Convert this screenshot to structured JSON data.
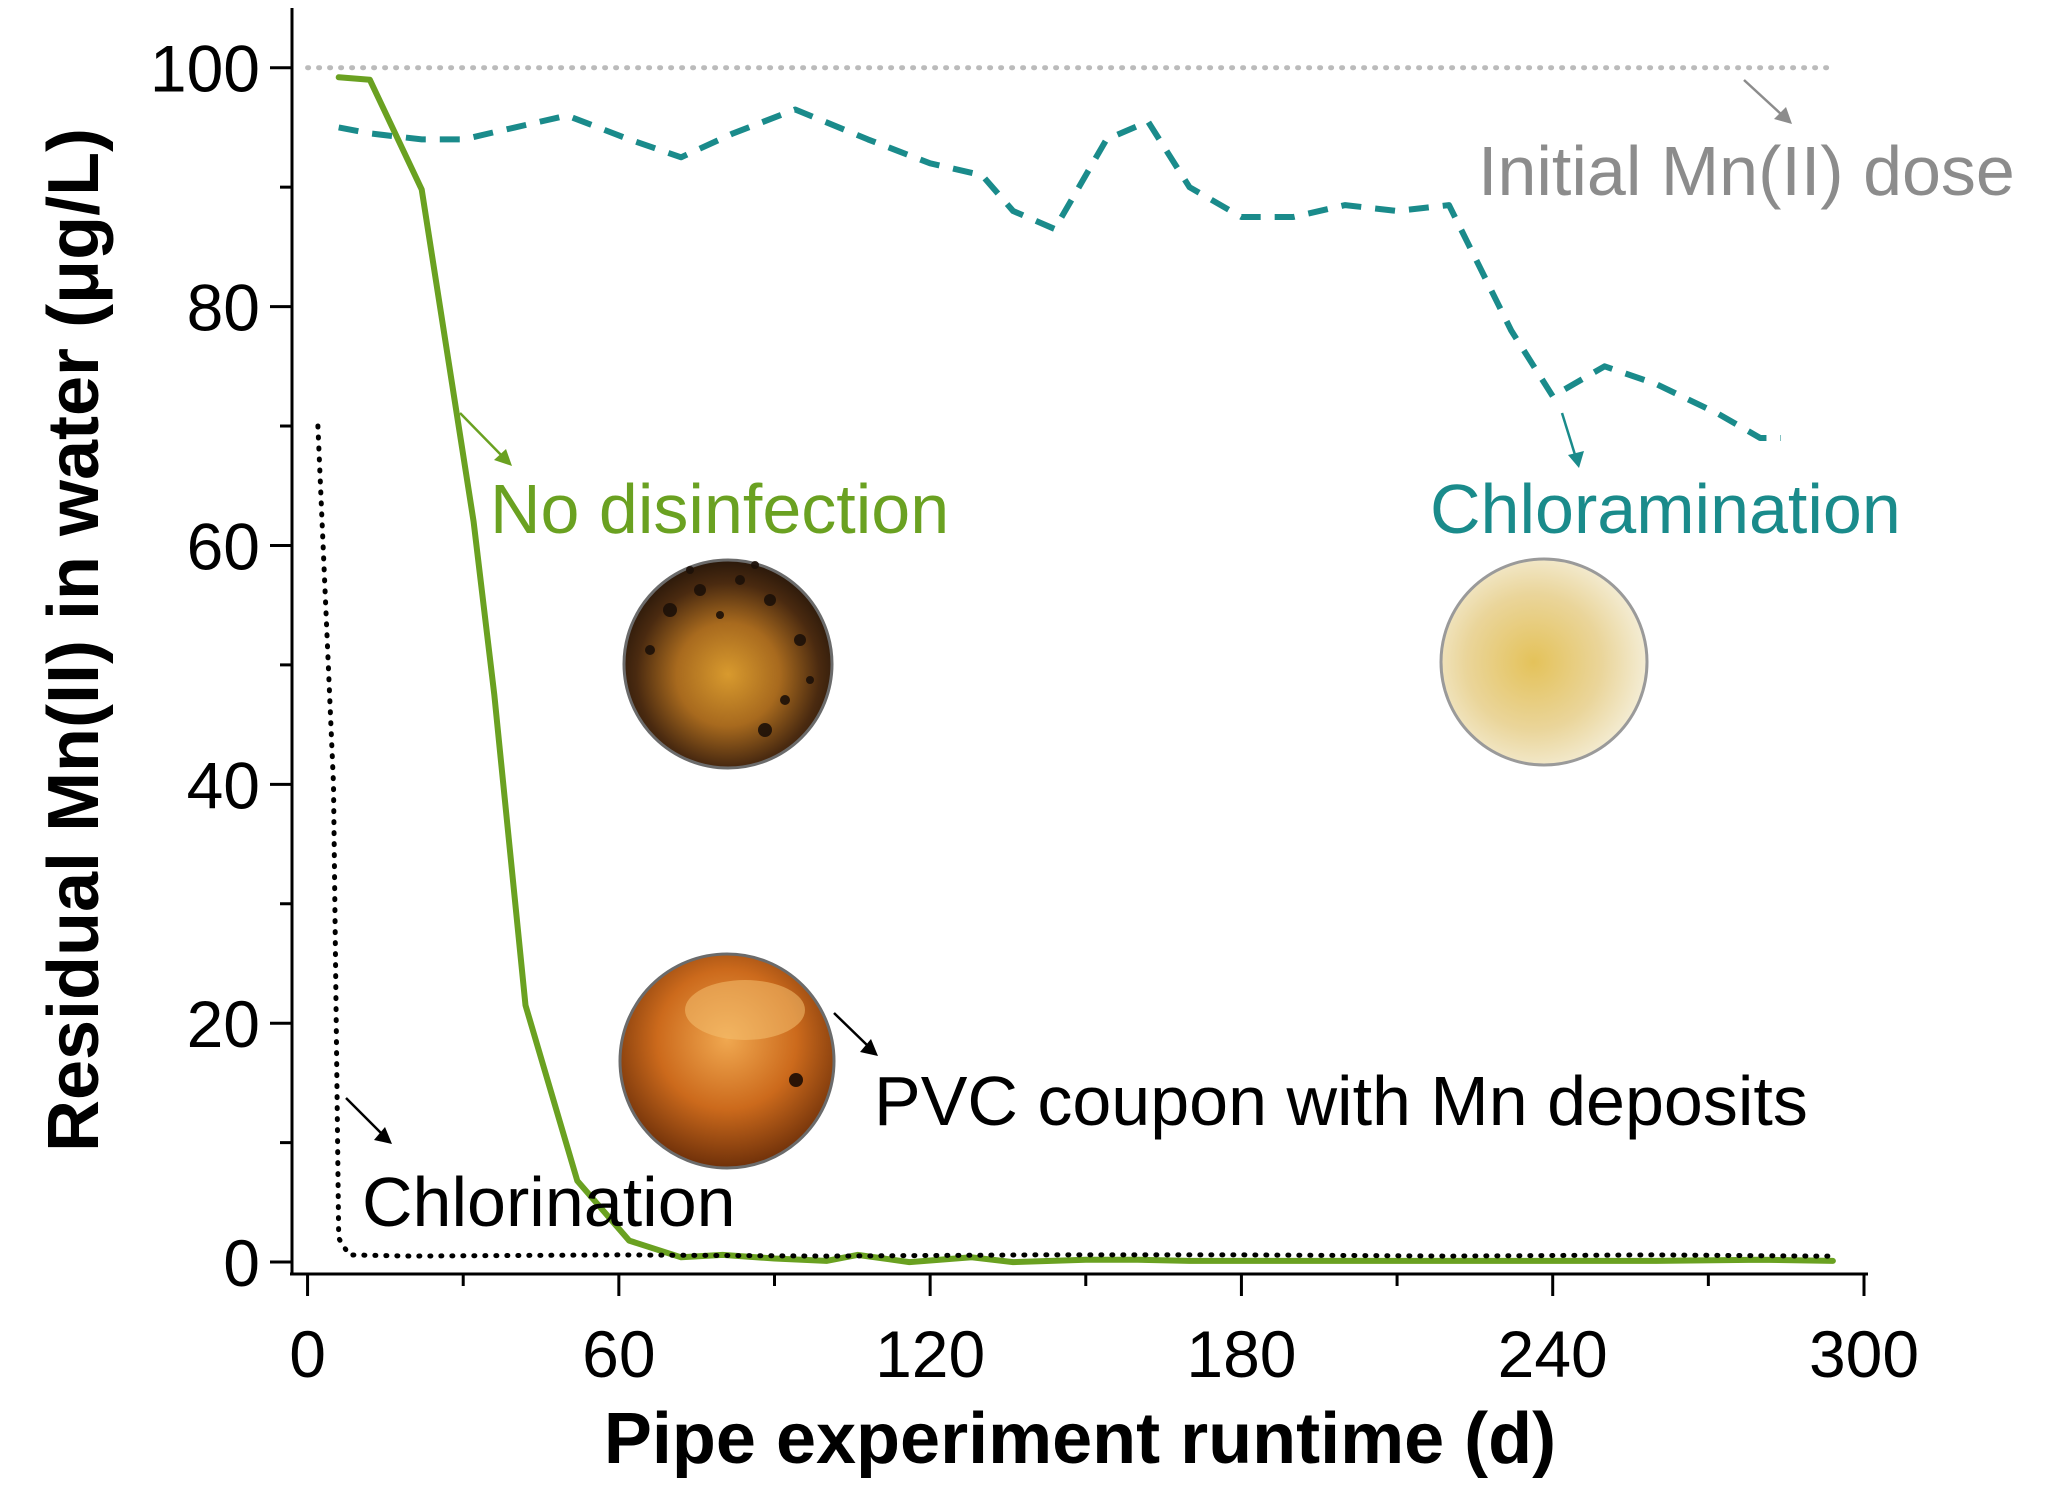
{
  "chart_data": {
    "type": "line",
    "xlabel": "Pipe experiment runtime (d)",
    "ylabel": "Residual Mn(II) in water (μg/L)",
    "xlim": [
      -3,
      300
    ],
    "ylim": [
      -1,
      105
    ],
    "xticks": [
      0,
      60,
      120,
      180,
      240,
      300
    ],
    "yticks": [
      0,
      20,
      40,
      60,
      80,
      100
    ],
    "grid": false,
    "legend": "none",
    "series": [
      {
        "name": "No disinfection",
        "color": "#6aa121",
        "style": "solid",
        "x": [
          6,
          12,
          22,
          32,
          36,
          42,
          52,
          62,
          72,
          80,
          90,
          100,
          106,
          116,
          128,
          136,
          150,
          160,
          170,
          180,
          200,
          220,
          240,
          260,
          280,
          294
        ],
        "y": [
          99.2,
          99,
          89.8,
          62,
          47.5,
          21.5,
          6.8,
          1.8,
          0.4,
          0.6,
          0.3,
          0.1,
          0.6,
          0,
          0.4,
          0,
          0.2,
          0.2,
          0.1,
          0.1,
          0.1,
          0.1,
          0.1,
          0.1,
          0.2,
          0.1
        ]
      },
      {
        "name": "Chloramination",
        "color": "#1a8b8b",
        "style": "dashed",
        "x": [
          6,
          12,
          22,
          30,
          40,
          50,
          62,
          72,
          82,
          94,
          108,
          120,
          130,
          136,
          144,
          154,
          162,
          170,
          180,
          190,
          200,
          210,
          220,
          232,
          240,
          250,
          260,
          272,
          280,
          284
        ],
        "y": [
          95,
          94.5,
          94,
          94,
          95,
          96,
          94,
          92.5,
          94.5,
          96.5,
          94,
          92,
          91,
          88,
          86.5,
          94,
          95.5,
          90,
          87.5,
          87.5,
          88.5,
          88,
          88.5,
          78,
          72.5,
          75,
          73.5,
          71,
          69,
          69
        ]
      },
      {
        "name": "Chlorination",
        "color": "#000000",
        "style": "dotted",
        "x": [
          2,
          5,
          6,
          8,
          20,
          60,
          100,
          140,
          180,
          220,
          260,
          290,
          294
        ],
        "y": [
          70,
          40,
          2,
          0.6,
          0.5,
          0.6,
          0.5,
          0.6,
          0.6,
          0.5,
          0.6,
          0.5,
          0.5
        ]
      },
      {
        "name": "Initial Mn(II) dose",
        "color": "#bbbbbb",
        "style": "dotted",
        "x": [
          0,
          294
        ],
        "y": [
          100,
          100
        ]
      }
    ],
    "annotations": [
      {
        "text": "No disinfection",
        "color": "#6aa121"
      },
      {
        "text": "Chloramination",
        "color": "#1a8b8b"
      },
      {
        "text": "Initial Mn(II) dose",
        "color": "#8c8c8c"
      },
      {
        "text": "PVC coupon with Mn deposits",
        "color": "#000000"
      },
      {
        "text": "Chlorination",
        "color": "#000000"
      }
    ],
    "images": [
      {
        "name": "coupon-no-disinfection",
        "description_icon": "dark-brown-coupon"
      },
      {
        "name": "coupon-chloramination",
        "description_icon": "pale-yellow-coupon"
      },
      {
        "name": "coupon-chlorination",
        "description_icon": "orange-brown-coupon"
      }
    ]
  }
}
